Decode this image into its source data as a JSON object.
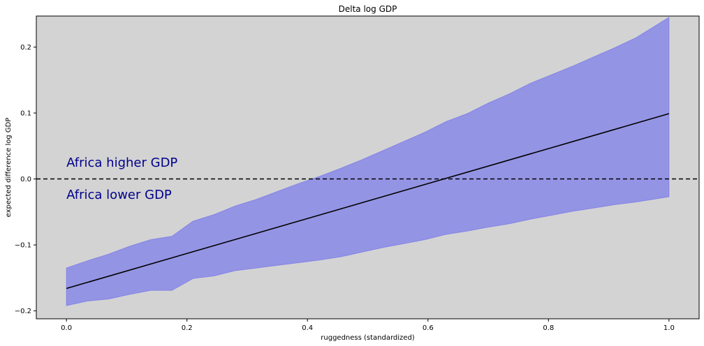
{
  "chart_data": {
    "type": "line",
    "title": "Delta log GDP",
    "xlabel": "ruggedness (standardized)",
    "ylabel": "expected difference log GDP",
    "xlim": [
      -0.05,
      1.05
    ],
    "ylim": [
      -0.212,
      0.247
    ],
    "xticks": [
      0.0,
      0.2,
      0.4,
      0.6,
      0.8,
      1.0
    ],
    "xtick_labels": [
      "0.0",
      "0.2",
      "0.4",
      "0.6",
      "0.8",
      "1.0"
    ],
    "yticks": [
      -0.2,
      -0.1,
      0.0,
      0.1,
      0.2
    ],
    "ytick_labels": [
      "−0.2",
      "−0.1",
      "0.0",
      "0.1",
      "0.2"
    ],
    "grid": false,
    "background": "#d3d3d3",
    "series": [
      {
        "kind": "line",
        "color": "#000000",
        "x": [
          0.0,
          1.0
        ],
        "y": [
          -0.166,
          0.099
        ]
      },
      {
        "kind": "band",
        "color": "#6a6af0",
        "opacity": 0.6,
        "x": [
          0.0,
          0.035,
          0.07,
          0.105,
          0.14,
          0.175,
          0.21,
          0.245,
          0.28,
          0.315,
          0.35,
          0.385,
          0.42,
          0.455,
          0.49,
          0.525,
          0.56,
          0.595,
          0.63,
          0.665,
          0.7,
          0.735,
          0.77,
          0.805,
          0.84,
          0.875,
          0.91,
          0.945,
          1.0
        ],
        "upper": [
          -0.135,
          -0.124,
          -0.114,
          -0.102,
          -0.092,
          -0.087,
          -0.064,
          -0.054,
          -0.041,
          -0.031,
          -0.019,
          -0.007,
          0.004,
          0.016,
          0.029,
          0.043,
          0.057,
          0.071,
          0.087,
          0.099,
          0.115,
          0.129,
          0.145,
          0.158,
          0.171,
          0.185,
          0.199,
          0.214,
          0.245
        ],
        "lower": [
          -0.192,
          -0.185,
          -0.182,
          -0.175,
          -0.169,
          -0.169,
          -0.151,
          -0.147,
          -0.139,
          -0.135,
          -0.131,
          -0.127,
          -0.123,
          -0.118,
          -0.111,
          -0.104,
          -0.098,
          -0.092,
          -0.084,
          -0.079,
          -0.073,
          -0.068,
          -0.061,
          -0.055,
          -0.049,
          -0.044,
          -0.039,
          -0.035,
          -0.027
        ]
      }
    ],
    "hline": {
      "y": 0.0,
      "style": "dashed",
      "color": "#000000"
    },
    "annotations": [
      {
        "text": "Africa higher GDP",
        "x": 0.0,
        "y": 0.025,
        "color": "#00008b"
      },
      {
        "text": "Africa lower GDP",
        "x": 0.0,
        "y": -0.024,
        "color": "#00008b"
      }
    ]
  }
}
